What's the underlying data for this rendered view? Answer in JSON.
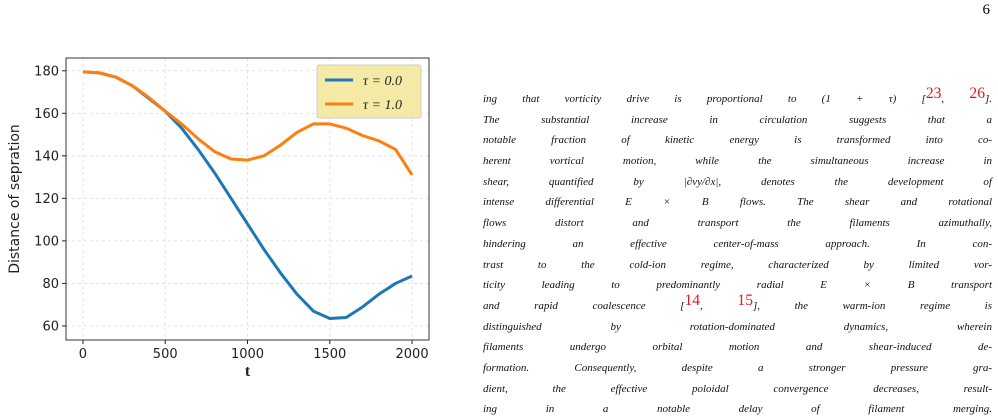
{
  "page_number": "6",
  "chart_data": {
    "type": "line",
    "x_label": "t",
    "y_label": "Distance of sepration",
    "x": [
      0,
      100,
      200,
      300,
      400,
      500,
      600,
      700,
      800,
      900,
      1000,
      1100,
      1200,
      1300,
      1400,
      1500,
      1600,
      1700,
      1800,
      1900,
      2000
    ],
    "series": [
      {
        "name": "τ = 0.0",
        "color": "#1f77b4",
        "values": [
          179.5,
          179,
          177,
          173,
          167,
          161,
          153,
          143,
          132,
          120,
          108,
          96,
          85,
          75,
          67,
          63.5,
          64,
          69,
          75,
          80,
          83.5
        ]
      },
      {
        "name": "τ = 1.0",
        "color": "#ff7f0e",
        "values": [
          179.5,
          179,
          177,
          173,
          167.5,
          161,
          155,
          148,
          142,
          138.5,
          138,
          140,
          145,
          151,
          155,
          155,
          153,
          149.5,
          147,
          143,
          131
        ]
      }
    ],
    "xlim": [
      -103,
      2103
    ],
    "ylim": [
      53.4,
      186
    ],
    "xticks": [
      0,
      500,
      1000,
      1500,
      2000
    ],
    "yticks": [
      60,
      80,
      100,
      120,
      140,
      160,
      180
    ],
    "grid": true,
    "legend": "upper right"
  },
  "lines": [
    [
      "ing that vorticity drive is proportional to (1 + τ) [",
      {
        "text": "23",
        "ref": true
      },
      ", ",
      {
        "text": "26",
        "ref": true
      },
      "]."
    ],
    [
      "The substantial increase in circulation suggests that a"
    ],
    [
      "notable fraction of kinetic energy is transformed into co-"
    ],
    [
      "herent vortical motion, while the simultaneous increase in"
    ],
    [
      "shear, quantified by |∂v",
      {
        "text": "y",
        "sub": true
      },
      "/∂x|, denotes the development of"
    ],
    [
      "intense differential E × B flows. The shear and rotational"
    ],
    [
      "flows distort and transport the filaments azimuthally,"
    ],
    [
      "hindering an effective center-of-mass approach. In con-"
    ],
    [
      "trast to the cold-ion regime, characterized by limited vor-"
    ],
    [
      "ticity leading to predominantly radial E × B transport"
    ],
    [
      "and rapid coalescence [",
      {
        "text": "14",
        "ref": true
      },
      ", ",
      {
        "text": "15",
        "ref": true
      },
      "], the warm-ion regime is"
    ],
    [
      "distinguished by rotation-dominated dynamics, wherein"
    ],
    [
      "filaments undergo orbital motion and shear-induced de-"
    ],
    [
      "formation. Consequently, despite a stronger pressure gra-"
    ],
    [
      "dient, the effective poloidal convergence decreases, result-"
    ],
    [
      "ing in a notable delay of filament merging."
    ]
  ]
}
